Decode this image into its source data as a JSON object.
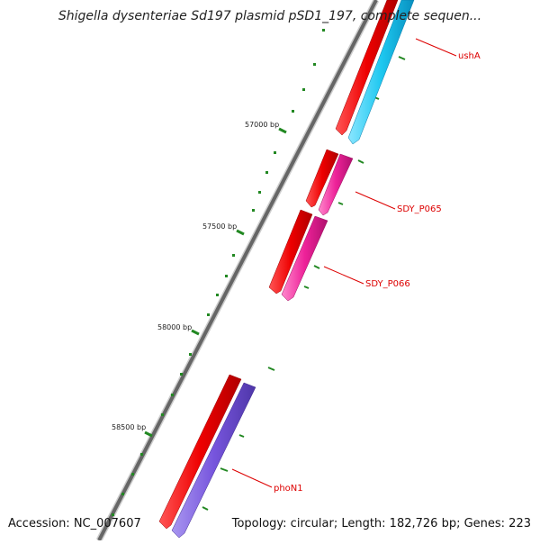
{
  "title": "Shigella dysenteriae Sd197 plasmid pSD1_197, complete sequen...",
  "footer": {
    "accession": "Accession: NC_007607",
    "summary": "Topology: circular; Length: 182,726 bp; Genes: 223"
  },
  "map": {
    "ticks": [
      {
        "bp": 57000,
        "label": "57000 bp"
      },
      {
        "bp": 57500,
        "label": "57500 bp"
      },
      {
        "bp": 58000,
        "label": "58000 bp"
      },
      {
        "bp": 58500,
        "label": "58500 bp"
      }
    ],
    "genes": [
      {
        "label": "ushA",
        "color": "#1ec8f0"
      },
      {
        "label": "SDY_P065",
        "color": "#ee2299"
      },
      {
        "label": "SDY_P066",
        "color": "#ee2299"
      },
      {
        "label": "phoN1",
        "color": "#7755dd"
      }
    ],
    "cds_color": "#ee0000",
    "backbone_color": "#666666",
    "label_color": "#dd0000",
    "tick_color": "#228822"
  }
}
